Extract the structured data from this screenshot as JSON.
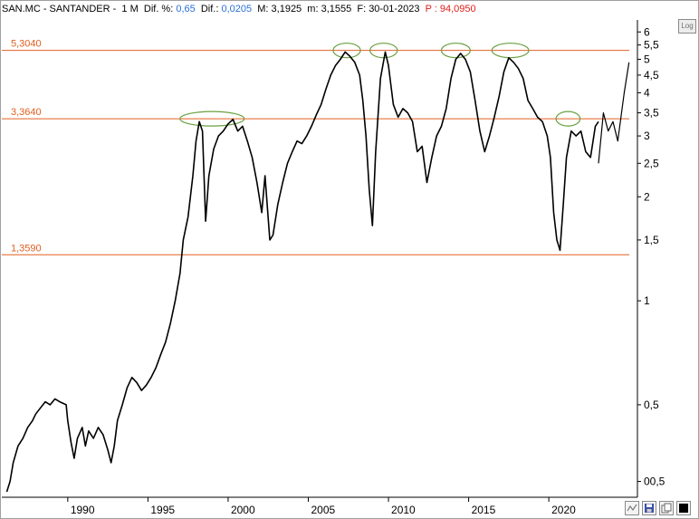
{
  "header": {
    "symbol": "SAN.MC - SANTANDER - ",
    "period": " 1 M",
    "dif_pct_label": "  Dif. %: ",
    "dif_pct_value": "0,65",
    "dif_label": "  Dif.: ",
    "dif_value": "0,0205",
    "max_label": "  M: ",
    "max_value": "3,1925",
    "min_label": "  m: ",
    "min_value": "3,1555",
    "date_label": "  F: ",
    "date_value": "30-01-2023",
    "p_label": "  P : ",
    "p_value": "94,0950"
  },
  "controls": {
    "log_label": "Log"
  },
  "chart_data": {
    "type": "line",
    "y_scale": "log",
    "ylim": [
      0.27,
      6.5
    ],
    "xlim": [
      1986.0,
      2025.3
    ],
    "y_tick_labels": [
      {
        "v": 6,
        "t": "6"
      },
      {
        "v": 5.5,
        "t": "5,5"
      },
      {
        "v": 5,
        "t": "5"
      },
      {
        "v": 4.5,
        "t": "4,5"
      },
      {
        "v": 4,
        "t": "4"
      },
      {
        "v": 3.5,
        "t": "3,5"
      },
      {
        "v": 3,
        "t": "3"
      },
      {
        "v": 2.5,
        "t": "2,5"
      },
      {
        "v": 2,
        "t": "2"
      },
      {
        "v": 1.5,
        "t": "1,5"
      },
      {
        "v": 1,
        "t": "1"
      },
      {
        "v": 0.5,
        "t": "0,5"
      },
      {
        "v": 0.3,
        "t": "00,5"
      }
    ],
    "x_tick_labels": [
      {
        "v": 1990,
        "t": "1990"
      },
      {
        "v": 1995,
        "t": "1995"
      },
      {
        "v": 2000,
        "t": "2000"
      },
      {
        "v": 2005,
        "t": "2005"
      },
      {
        "v": 2010,
        "t": "2010"
      },
      {
        "v": 2015,
        "t": "2015"
      },
      {
        "v": 2020,
        "t": "2020"
      }
    ],
    "horizontal_lines": [
      {
        "value": 5.304,
        "label": "5,3040",
        "color": "#e06020"
      },
      {
        "value": 3.364,
        "label": "3,3640",
        "color": "#e06020"
      },
      {
        "value": 1.359,
        "label": "1,3590",
        "color": "#e06020"
      }
    ],
    "highlights": [
      {
        "x": 1999.0,
        "y": 3.364,
        "rx": 2.0
      },
      {
        "x": 2007.4,
        "y": 5.304,
        "rx": 0.85
      },
      {
        "x": 2009.7,
        "y": 5.304,
        "rx": 0.85
      },
      {
        "x": 2014.2,
        "y": 5.304,
        "rx": 0.9
      },
      {
        "x": 2017.6,
        "y": 5.304,
        "rx": 1.15
      },
      {
        "x": 2021.2,
        "y": 3.364,
        "rx": 0.75
      }
    ],
    "series": [
      {
        "values": [
          [
            1986.2,
            0.28
          ],
          [
            1986.4,
            0.3
          ],
          [
            1986.6,
            0.34
          ],
          [
            1986.9,
            0.38
          ],
          [
            1987.2,
            0.4
          ],
          [
            1987.5,
            0.43
          ],
          [
            1987.8,
            0.45
          ],
          [
            1988.0,
            0.47
          ],
          [
            1988.3,
            0.49
          ],
          [
            1988.6,
            0.51
          ],
          [
            1988.9,
            0.5
          ],
          [
            1989.2,
            0.52
          ],
          [
            1989.5,
            0.51
          ],
          [
            1989.9,
            0.5
          ],
          [
            1990.0,
            0.45
          ],
          [
            1990.2,
            0.39
          ],
          [
            1990.4,
            0.35
          ],
          [
            1990.6,
            0.4
          ],
          [
            1990.9,
            0.43
          ],
          [
            1991.1,
            0.38
          ],
          [
            1991.3,
            0.42
          ],
          [
            1991.6,
            0.4
          ],
          [
            1991.9,
            0.43
          ],
          [
            1992.2,
            0.41
          ],
          [
            1992.5,
            0.37
          ],
          [
            1992.7,
            0.34
          ],
          [
            1992.9,
            0.38
          ],
          [
            1993.1,
            0.45
          ],
          [
            1993.4,
            0.5
          ],
          [
            1993.7,
            0.56
          ],
          [
            1994.0,
            0.6
          ],
          [
            1994.3,
            0.58
          ],
          [
            1994.6,
            0.55
          ],
          [
            1994.9,
            0.57
          ],
          [
            1995.2,
            0.6
          ],
          [
            1995.5,
            0.64
          ],
          [
            1995.8,
            0.7
          ],
          [
            1996.1,
            0.76
          ],
          [
            1996.4,
            0.86
          ],
          [
            1996.7,
            1.0
          ],
          [
            1997.0,
            1.2
          ],
          [
            1997.2,
            1.5
          ],
          [
            1997.5,
            1.75
          ],
          [
            1997.8,
            2.3
          ],
          [
            1998.0,
            2.9
          ],
          [
            1998.2,
            3.3
          ],
          [
            1998.4,
            3.1
          ],
          [
            1998.6,
            1.7
          ],
          [
            1998.8,
            2.3
          ],
          [
            1999.1,
            2.75
          ],
          [
            1999.4,
            3.0
          ],
          [
            1999.7,
            3.1
          ],
          [
            2000.0,
            3.25
          ],
          [
            2000.3,
            3.35
          ],
          [
            2000.6,
            3.1
          ],
          [
            2000.9,
            3.2
          ],
          [
            2001.2,
            2.9
          ],
          [
            2001.5,
            2.6
          ],
          [
            2001.8,
            2.2
          ],
          [
            2002.1,
            1.8
          ],
          [
            2002.3,
            2.3
          ],
          [
            2002.6,
            1.5
          ],
          [
            2002.8,
            1.55
          ],
          [
            2003.1,
            1.9
          ],
          [
            2003.4,
            2.2
          ],
          [
            2003.7,
            2.5
          ],
          [
            2004.0,
            2.7
          ],
          [
            2004.3,
            2.9
          ],
          [
            2004.6,
            2.85
          ],
          [
            2004.9,
            3.0
          ],
          [
            2005.2,
            3.2
          ],
          [
            2005.5,
            3.45
          ],
          [
            2005.8,
            3.7
          ],
          [
            2006.1,
            4.1
          ],
          [
            2006.4,
            4.5
          ],
          [
            2006.7,
            4.8
          ],
          [
            2007.0,
            5.0
          ],
          [
            2007.3,
            5.25
          ],
          [
            2007.6,
            5.1
          ],
          [
            2007.9,
            4.9
          ],
          [
            2008.2,
            4.5
          ],
          [
            2008.4,
            3.8
          ],
          [
            2008.6,
            3.0
          ],
          [
            2008.8,
            2.1
          ],
          [
            2009.0,
            1.65
          ],
          [
            2009.2,
            2.7
          ],
          [
            2009.5,
            4.4
          ],
          [
            2009.8,
            5.25
          ],
          [
            2010.0,
            4.8
          ],
          [
            2010.3,
            3.7
          ],
          [
            2010.6,
            3.4
          ],
          [
            2010.9,
            3.6
          ],
          [
            2011.2,
            3.5
          ],
          [
            2011.5,
            3.3
          ],
          [
            2011.8,
            2.7
          ],
          [
            2012.1,
            2.8
          ],
          [
            2012.4,
            2.2
          ],
          [
            2012.7,
            2.6
          ],
          [
            2013.0,
            3.0
          ],
          [
            2013.3,
            3.2
          ],
          [
            2013.6,
            3.6
          ],
          [
            2013.9,
            4.4
          ],
          [
            2014.2,
            5.0
          ],
          [
            2014.5,
            5.2
          ],
          [
            2014.8,
            5.0
          ],
          [
            2015.1,
            4.6
          ],
          [
            2015.4,
            3.8
          ],
          [
            2015.7,
            3.1
          ],
          [
            2016.0,
            2.7
          ],
          [
            2016.3,
            3.0
          ],
          [
            2016.6,
            3.4
          ],
          [
            2016.9,
            3.9
          ],
          [
            2017.2,
            4.6
          ],
          [
            2017.5,
            5.05
          ],
          [
            2017.8,
            4.9
          ],
          [
            2018.1,
            4.7
          ],
          [
            2018.4,
            4.4
          ],
          [
            2018.7,
            3.8
          ],
          [
            2019.0,
            3.6
          ],
          [
            2019.3,
            3.4
          ],
          [
            2019.6,
            3.3
          ],
          [
            2019.9,
            3.0
          ],
          [
            2020.1,
            2.6
          ],
          [
            2020.3,
            1.8
          ],
          [
            2020.5,
            1.5
          ],
          [
            2020.7,
            1.4
          ],
          [
            2020.9,
            1.9
          ],
          [
            2021.1,
            2.6
          ],
          [
            2021.4,
            3.1
          ],
          [
            2021.7,
            3.0
          ],
          [
            2022.0,
            3.1
          ],
          [
            2022.3,
            2.7
          ],
          [
            2022.6,
            2.6
          ],
          [
            2022.9,
            3.2
          ],
          [
            2023.1,
            3.3
          ]
        ]
      },
      {
        "values": [
          [
            2023.1,
            2.5
          ],
          [
            2023.4,
            3.5
          ],
          [
            2023.7,
            3.1
          ],
          [
            2024.0,
            3.3
          ],
          [
            2024.3,
            2.9
          ],
          [
            2024.7,
            4.0
          ],
          [
            2025.0,
            4.9
          ]
        ]
      }
    ]
  }
}
